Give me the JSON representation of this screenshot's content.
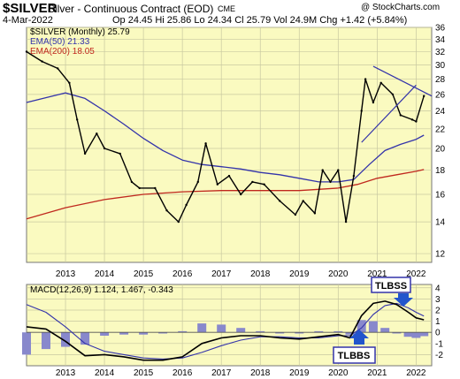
{
  "header": {
    "symbol": "$SILVER",
    "title": "Silver - Continuous Contract (EOD)",
    "exchange": "CME",
    "copyright": "@ StockCharts.com",
    "date": "4-Mar-2022",
    "ohlc": "Op 24.45  Hi 25.86  Lo 24.34  Cl 25.79  Vol 24.9M  Chg +1.42 (+5.84%)"
  },
  "legend": {
    "price": "$SILVER (Monthly) 25.79",
    "ema50": "EMA(50) 21.33",
    "ema200": "EMA(200) 18.05",
    "macd": "MACD(12,26,9) 1.124, 1.467, -0.343"
  },
  "colors": {
    "plot_bg": "#fafac0",
    "grid": "#c8c8a0",
    "price": "#000000",
    "ema50": "#3333aa",
    "ema200": "#c0281e",
    "macd_line": "#000000",
    "signal_line": "#3333aa",
    "histogram": "#8888cc",
    "annotation_box_border": "#3333aa",
    "arrow": "#2255cc"
  },
  "annotations": [
    "TLBSS",
    "TLBBS"
  ],
  "chart_data": [
    {
      "type": "line",
      "panel": "price",
      "x_ticks": [
        "2013",
        "2014",
        "2015",
        "2016",
        "2017",
        "2018",
        "2019",
        "2020",
        "2021",
        "2022"
      ],
      "y_ticks": [
        12,
        14,
        16,
        18,
        20,
        22,
        24,
        26,
        28,
        30,
        32,
        34,
        36
      ],
      "ylim": [
        11.5,
        36
      ],
      "scale": "log",
      "grid": true,
      "series": [
        {
          "name": "$SILVER (Monthly)",
          "x": [
            2012.0,
            2012.4,
            2012.8,
            2013.1,
            2013.3,
            2013.5,
            2013.8,
            2014.0,
            2014.4,
            2014.7,
            2014.9,
            2015.3,
            2015.6,
            2015.9,
            2016.1,
            2016.4,
            2016.6,
            2016.9,
            2017.2,
            2017.5,
            2017.8,
            2018.1,
            2018.5,
            2018.9,
            2019.1,
            2019.4,
            2019.6,
            2019.8,
            2020.0,
            2020.2,
            2020.4,
            2020.6,
            2020.7,
            2020.9,
            2021.1,
            2021.4,
            2021.6,
            2021.9,
            2022.0,
            2022.2
          ],
          "values": [
            32.0,
            30.5,
            29.5,
            27.5,
            23.0,
            19.5,
            21.5,
            20.0,
            19.5,
            17.0,
            16.5,
            16.5,
            14.8,
            14.0,
            15.2,
            17.0,
            20.5,
            16.8,
            17.5,
            16.0,
            17.0,
            16.8,
            15.5,
            14.5,
            15.5,
            14.6,
            18.0,
            17.0,
            18.0,
            14.0,
            17.5,
            24.0,
            28.0,
            25.0,
            27.5,
            26.0,
            23.5,
            23.0,
            22.8,
            25.79
          ]
        },
        {
          "name": "EMA(50)",
          "x": [
            2012.0,
            2013.0,
            2013.5,
            2014.0,
            2014.5,
            2015.0,
            2015.5,
            2016.0,
            2016.5,
            2017.0,
            2017.5,
            2018.0,
            2018.5,
            2019.0,
            2019.5,
            2020.0,
            2020.4,
            2020.8,
            2021.2,
            2021.6,
            2022.0,
            2022.2
          ],
          "values": [
            25.0,
            26.2,
            25.5,
            24.0,
            22.5,
            21.0,
            19.8,
            18.9,
            18.5,
            18.3,
            18.1,
            17.8,
            17.6,
            17.3,
            17.0,
            17.0,
            17.2,
            18.5,
            19.8,
            20.4,
            20.9,
            21.33
          ]
        },
        {
          "name": "EMA(200)",
          "x": [
            2012.0,
            2013.0,
            2014.0,
            2015.0,
            2016.0,
            2017.0,
            2018.0,
            2019.0,
            2019.5,
            2020.0,
            2020.5,
            2021.0,
            2021.5,
            2022.0,
            2022.2
          ],
          "values": [
            14.2,
            15.0,
            15.6,
            16.0,
            16.2,
            16.3,
            16.3,
            16.3,
            16.4,
            16.5,
            16.8,
            17.3,
            17.6,
            17.9,
            18.05
          ]
        }
      ]
    },
    {
      "type": "line",
      "panel": "macd",
      "x_ticks": [
        "2013",
        "2014",
        "2015",
        "2016",
        "2017",
        "2018",
        "2019",
        "2020",
        "2021",
        "2022"
      ],
      "y_ticks": [
        -2,
        -1,
        0,
        1,
        2,
        3,
        4
      ],
      "ylim": [
        -3,
        4.3
      ],
      "grid": true,
      "series": [
        {
          "name": "MACD",
          "x": [
            2012.0,
            2012.5,
            2013.0,
            2013.5,
            2014.0,
            2014.5,
            2015.0,
            2015.5,
            2016.0,
            2016.5,
            2017.0,
            2017.5,
            2018.0,
            2018.5,
            2019.0,
            2019.5,
            2020.0,
            2020.3,
            2020.6,
            2020.9,
            2021.2,
            2021.5,
            2021.8,
            2022.0,
            2022.2
          ],
          "values": [
            0.5,
            0.3,
            -0.8,
            -2.1,
            -2.0,
            -2.2,
            -2.5,
            -2.5,
            -2.2,
            -1.0,
            -0.5,
            -0.3,
            -0.3,
            -0.5,
            -0.6,
            -0.4,
            -0.2,
            -0.5,
            1.5,
            2.6,
            2.8,
            2.5,
            1.8,
            1.3,
            1.124
          ]
        },
        {
          "name": "Signal",
          "x": [
            2012.0,
            2012.5,
            2013.0,
            2013.5,
            2014.0,
            2014.5,
            2015.0,
            2015.5,
            2016.0,
            2016.5,
            2017.0,
            2017.5,
            2018.0,
            2018.5,
            2019.0,
            2019.5,
            2020.0,
            2020.3,
            2020.6,
            2020.9,
            2021.2,
            2021.5,
            2021.8,
            2022.0,
            2022.2
          ],
          "values": [
            2.5,
            1.8,
            0.5,
            -1.0,
            -1.7,
            -2.0,
            -2.3,
            -2.4,
            -2.3,
            -1.8,
            -1.2,
            -0.7,
            -0.4,
            -0.4,
            -0.5,
            -0.5,
            -0.3,
            -0.3,
            0.4,
            1.6,
            2.4,
            2.6,
            2.2,
            1.8,
            1.467
          ]
        }
      ]
    }
  ]
}
